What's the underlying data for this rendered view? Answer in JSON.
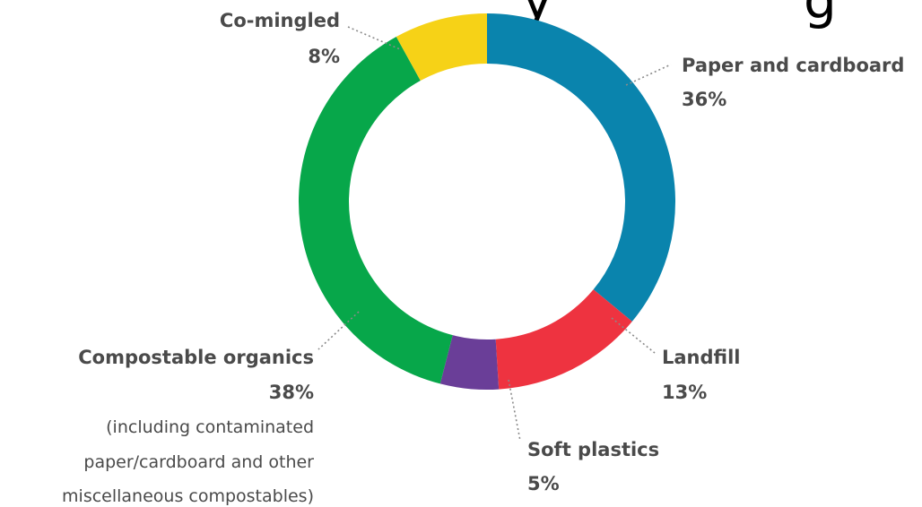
{
  "chart_data": {
    "type": "pie",
    "variant": "donut",
    "title_fragment": "y",
    "title_fragment_right": "g",
    "slices": [
      {
        "label": "Paper and cardboard",
        "value": 36,
        "value_label": "36%",
        "color": "#0a84ad"
      },
      {
        "label": "Landfill",
        "value": 13,
        "value_label": "13%",
        "color": "#ee3340"
      },
      {
        "label": "Soft plastics",
        "value": 5,
        "value_label": "5%",
        "color": "#6a3e98"
      },
      {
        "label": "Compostable organics",
        "value": 38,
        "value_label": "38%",
        "color": "#07a74a",
        "note_lines": [
          "(including contaminated",
          "paper/cardboard and other",
          "miscellaneous compostables)"
        ]
      },
      {
        "label": "Co-mingled",
        "value": 8,
        "value_label": "8%",
        "color": "#f6d217"
      }
    ],
    "legend": "none",
    "grid": false
  }
}
